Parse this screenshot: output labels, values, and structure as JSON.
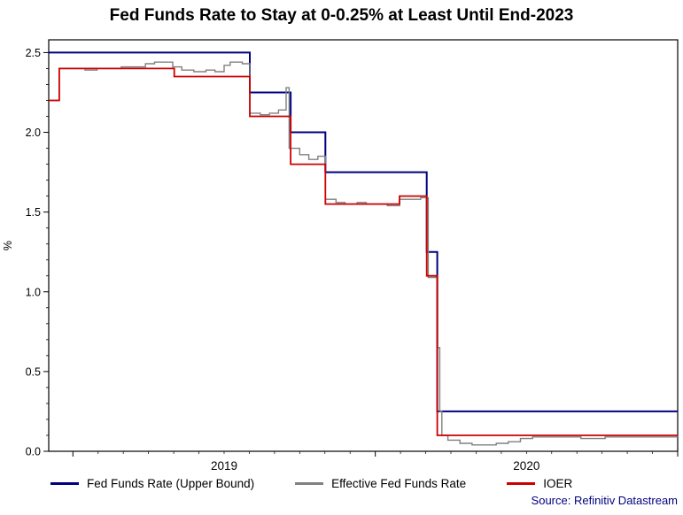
{
  "title": "Fed Funds Rate to Stay at 0-0.25% at Least Until End-2023",
  "source": "Source: Refinitiv Datastream",
  "chart_data": {
    "type": "line",
    "title": "Fed Funds Rate to Stay at 0-0.25% at Least Until End-2023",
    "xlabel": "",
    "ylabel": "%",
    "x_range": [
      2018.92,
      2021.0
    ],
    "y_range": [
      0,
      2.58
    ],
    "y_ticks": [
      0.0,
      0.5,
      1.0,
      1.5,
      2.0,
      2.5
    ],
    "y_minor_step": 0.1,
    "x_year_ticks": [
      2019,
      2020,
      2021
    ],
    "x_labels": [
      {
        "text": "2019",
        "t": 2019.5
      },
      {
        "text": "2020",
        "t": 2020.5
      }
    ],
    "grid": false,
    "legend_position": "bottom",
    "series": [
      {
        "name": "Fed Funds Rate (Upper Bound)",
        "color": "#000080",
        "width": 2,
        "interpolation": "step-after",
        "points": [
          [
            2018.92,
            2.5
          ],
          [
            2019.585,
            2.25
          ],
          [
            2019.72,
            2.0
          ],
          [
            2019.835,
            1.75
          ],
          [
            2020.17,
            1.25
          ],
          [
            2020.205,
            0.25
          ]
        ]
      },
      {
        "name": "Effective Fed Funds Rate",
        "color": "#808080",
        "width": 1.4,
        "interpolation": "step-after",
        "points": [
          [
            2018.92,
            2.2
          ],
          [
            2018.955,
            2.4
          ],
          [
            2019.0,
            2.4
          ],
          [
            2019.04,
            2.39
          ],
          [
            2019.08,
            2.4
          ],
          [
            2019.12,
            2.4
          ],
          [
            2019.16,
            2.41
          ],
          [
            2019.2,
            2.41
          ],
          [
            2019.24,
            2.43
          ],
          [
            2019.27,
            2.44
          ],
          [
            2019.3,
            2.44
          ],
          [
            2019.33,
            2.41
          ],
          [
            2019.36,
            2.39
          ],
          [
            2019.4,
            2.38
          ],
          [
            2019.44,
            2.39
          ],
          [
            2019.47,
            2.38
          ],
          [
            2019.5,
            2.42
          ],
          [
            2019.52,
            2.44
          ],
          [
            2019.56,
            2.43
          ],
          [
            2019.585,
            2.12
          ],
          [
            2019.62,
            2.11
          ],
          [
            2019.65,
            2.12
          ],
          [
            2019.68,
            2.14
          ],
          [
            2019.705,
            2.28
          ],
          [
            2019.715,
            1.9
          ],
          [
            2019.75,
            1.86
          ],
          [
            2019.78,
            1.83
          ],
          [
            2019.81,
            1.85
          ],
          [
            2019.835,
            1.58
          ],
          [
            2019.87,
            1.56
          ],
          [
            2019.9,
            1.55
          ],
          [
            2019.94,
            1.56
          ],
          [
            2019.97,
            1.55
          ],
          [
            2020.0,
            1.55
          ],
          [
            2020.04,
            1.54
          ],
          [
            2020.08,
            1.58
          ],
          [
            2020.12,
            1.58
          ],
          [
            2020.15,
            1.59
          ],
          [
            2020.175,
            1.09
          ],
          [
            2020.2,
            1.1
          ],
          [
            2020.206,
            0.65
          ],
          [
            2020.213,
            0.25
          ],
          [
            2020.22,
            0.1
          ],
          [
            2020.24,
            0.07
          ],
          [
            2020.28,
            0.05
          ],
          [
            2020.32,
            0.04
          ],
          [
            2020.36,
            0.04
          ],
          [
            2020.4,
            0.05
          ],
          [
            2020.44,
            0.06
          ],
          [
            2020.48,
            0.08
          ],
          [
            2020.52,
            0.09
          ],
          [
            2020.6,
            0.09
          ],
          [
            2020.68,
            0.08
          ],
          [
            2020.76,
            0.09
          ],
          [
            2020.88,
            0.09
          ]
        ]
      },
      {
        "name": "IOER",
        "color": "#cc0000",
        "width": 1.8,
        "interpolation": "step-after",
        "points": [
          [
            2018.92,
            2.2
          ],
          [
            2018.955,
            2.4
          ],
          [
            2019.335,
            2.35
          ],
          [
            2019.585,
            2.1
          ],
          [
            2019.72,
            1.8
          ],
          [
            2019.835,
            1.55
          ],
          [
            2020.08,
            1.6
          ],
          [
            2020.17,
            1.1
          ],
          [
            2020.205,
            0.1
          ]
        ]
      }
    ]
  }
}
